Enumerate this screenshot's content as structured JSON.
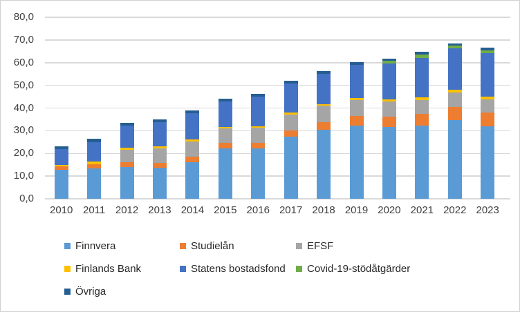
{
  "figure": {
    "background_color": "#ffffff",
    "border_color": "#cfcfcf",
    "gridline_color": "#d9d9d9",
    "axis_text_color": "#404040",
    "legend_text_color": "#262626"
  },
  "chart_data": {
    "type": "bar",
    "stacked": true,
    "title": "",
    "xlabel": "",
    "ylabel": "",
    "grid": true,
    "legend_position": "bottom",
    "ylim": [
      0,
      80
    ],
    "y_tick_step": 10,
    "y_tick_labels": [
      "0,0",
      "10,0",
      "20,0",
      "30,0",
      "40,0",
      "50,0",
      "60,0",
      "70,0",
      "80,0"
    ],
    "categories": [
      "2010",
      "2011",
      "2012",
      "2013",
      "2014",
      "2015",
      "2016",
      "2017",
      "2018",
      "2019",
      "2020",
      "2021",
      "2022",
      "2023"
    ],
    "series": [
      {
        "name": "Finnvera",
        "color": "#5B9BD5",
        "values": [
          12.9,
          13.5,
          14.0,
          13.8,
          16.1,
          22.2,
          22.1,
          27.3,
          30.3,
          32.3,
          31.6,
          32.2,
          34.7,
          31.9
        ]
      },
      {
        "name": "Studielån",
        "color": "#ED7D31",
        "values": [
          1.3,
          1.8,
          2.2,
          2.1,
          2.4,
          2.3,
          2.5,
          2.7,
          3.4,
          4.2,
          4.7,
          5.2,
          5.8,
          6.1
        ]
      },
      {
        "name": "EFSF",
        "color": "#A5A5A5",
        "values": [
          0,
          0,
          5.3,
          6.4,
          6.7,
          6.4,
          6.7,
          7.0,
          7.3,
          6.9,
          6.5,
          6.2,
          6.5,
          5.9
        ]
      },
      {
        "name": "Finlands Bank",
        "color": "#FFC000",
        "values": [
          0.8,
          1.0,
          0.9,
          0.9,
          0.9,
          0.7,
          0.7,
          0.9,
          0.7,
          1.0,
          1.0,
          1.0,
          1.0,
          1.0
        ]
      },
      {
        "name": "Statens bostadsfond",
        "color": "#4472C4",
        "values": [
          7.0,
          8.7,
          10.0,
          10.5,
          11.5,
          11.2,
          13.0,
          12.9,
          13.5,
          14.6,
          15.8,
          17.5,
          18.2,
          19.2
        ]
      },
      {
        "name": "Covid-19-stödåtgärder",
        "color": "#70AD47",
        "values": [
          0,
          0,
          0,
          0,
          0,
          0,
          0,
          0,
          0,
          0,
          1.2,
          1.5,
          1.3,
          1.4
        ]
      },
      {
        "name": "Övriga",
        "color": "#255E91",
        "values": [
          1.0,
          1.6,
          1.1,
          1.2,
          1.3,
          1.2,
          1.3,
          1.2,
          1.2,
          1.1,
          1.0,
          1.1,
          1.1,
          1.0
        ]
      }
    ]
  }
}
